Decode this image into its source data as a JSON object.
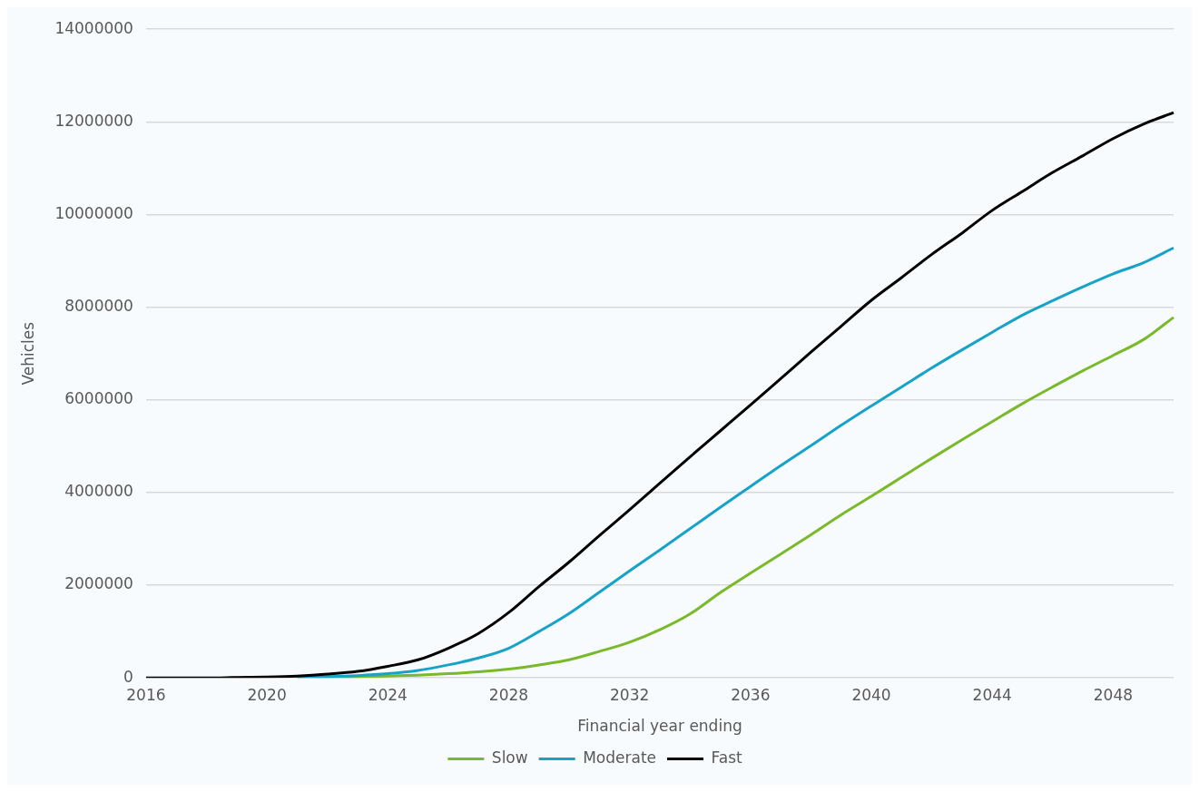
{
  "chart_data": {
    "type": "line",
    "xlabel": "Financial year ending",
    "ylabel": "Vehicles",
    "categories": [
      "2016",
      null,
      null,
      null,
      "2020",
      null,
      null,
      null,
      "2024",
      null,
      null,
      null,
      "2028",
      null,
      null,
      null,
      "2032",
      null,
      null,
      null,
      "2036",
      null,
      null,
      null,
      "2040",
      null,
      null,
      null,
      "2044",
      null,
      null,
      null,
      "2048",
      null,
      null
    ],
    "series": [
      {
        "name": "Slow",
        "color": "#7ab929",
        "values": [
          null,
          null,
          null,
          null,
          null,
          10000,
          10000,
          20000,
          40000,
          60000,
          90000,
          130000,
          190000,
          280000,
          390000,
          570000,
          770000,
          1040000,
          1380000,
          1840000,
          2260000,
          2670000,
          3090000,
          3520000,
          3920000,
          4330000,
          4740000,
          5140000,
          5530000,
          5920000,
          6280000,
          6630000,
          6960000,
          7300000,
          7780000
        ]
      },
      {
        "name": "Moderate",
        "color": "#17a2c8",
        "values": [
          null,
          null,
          null,
          null,
          null,
          20000,
          30000,
          50000,
          90000,
          160000,
          280000,
          430000,
          640000,
          1000000,
          1390000,
          1850000,
          2310000,
          2760000,
          3220000,
          3680000,
          4130000,
          4580000,
          5010000,
          5450000,
          5870000,
          6280000,
          6690000,
          7080000,
          7460000,
          7830000,
          8140000,
          8440000,
          8720000,
          8960000,
          9280000
        ]
      },
      {
        "name": "Fast",
        "color": "#000000",
        "values": [
          0,
          0,
          0,
          10000,
          20000,
          40000,
          80000,
          140000,
          250000,
          390000,
          640000,
          960000,
          1410000,
          1970000,
          2500000,
          3070000,
          3630000,
          4200000,
          4770000,
          5330000,
          5890000,
          6460000,
          7030000,
          7590000,
          8150000,
          8640000,
          9140000,
          9600000,
          10090000,
          10500000,
          10910000,
          11270000,
          11640000,
          11950000,
          12200000
        ]
      }
    ],
    "ylim": [
      0,
      14000000
    ],
    "yticks": [
      0,
      2000000,
      4000000,
      6000000,
      8000000,
      10000000,
      12000000,
      14000000
    ],
    "grid": "y",
    "legend": "bottom",
    "marker": "none",
    "line_style": "solid"
  }
}
